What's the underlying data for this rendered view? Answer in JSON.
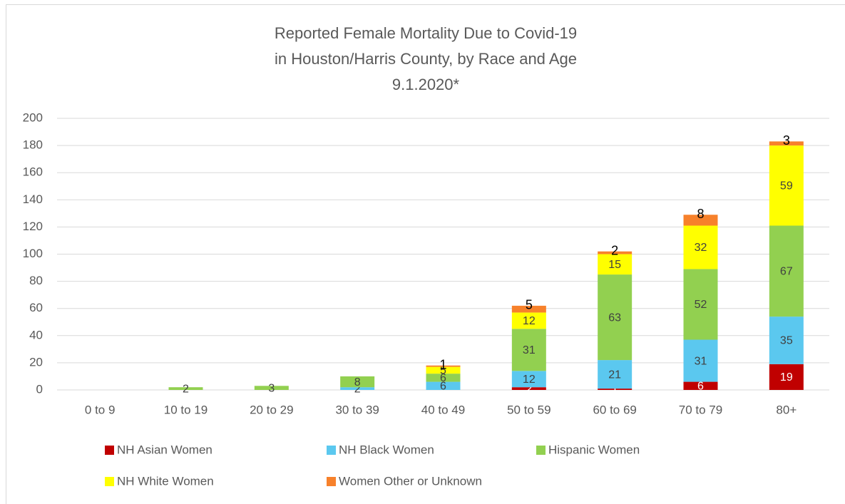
{
  "chart_data": {
    "type": "stacked_bar",
    "title": [
      "Reported Female Mortality Due to Covid-19",
      "in Houston/Harris County, by Race and Age",
      "9.1.2020*"
    ],
    "categories": [
      "0 to 9",
      "10 to 19",
      "20 to 29",
      "30 to 39",
      "40 to 49",
      "50 to 59",
      "60 to 69",
      "70 to 79",
      "80+"
    ],
    "series": [
      {
        "name": "NH Asian Women",
        "color": "#c00000",
        "values": [
          null,
          null,
          null,
          null,
          null,
          2,
          1,
          6,
          19
        ]
      },
      {
        "name": "NH Black Women",
        "color": "#5bc8ef",
        "values": [
          null,
          null,
          null,
          2,
          6,
          12,
          21,
          31,
          35
        ]
      },
      {
        "name": "Hispanic Women",
        "color": "#92d050",
        "values": [
          null,
          2,
          3,
          8,
          6,
          31,
          63,
          52,
          67
        ]
      },
      {
        "name": "NH White Women",
        "color": "#ffff00",
        "values": [
          null,
          null,
          null,
          null,
          5,
          12,
          15,
          32,
          59
        ]
      },
      {
        "name": "Women Other or Unknown",
        "color": "#f7812b",
        "values": [
          null,
          null,
          null,
          null,
          1,
          5,
          2,
          8,
          3
        ]
      }
    ],
    "ylim": [
      0,
      200
    ],
    "yticks": [
      0,
      20,
      40,
      60,
      80,
      100,
      120,
      140,
      160,
      180,
      200
    ],
    "grid": true,
    "legend": "bottom"
  }
}
